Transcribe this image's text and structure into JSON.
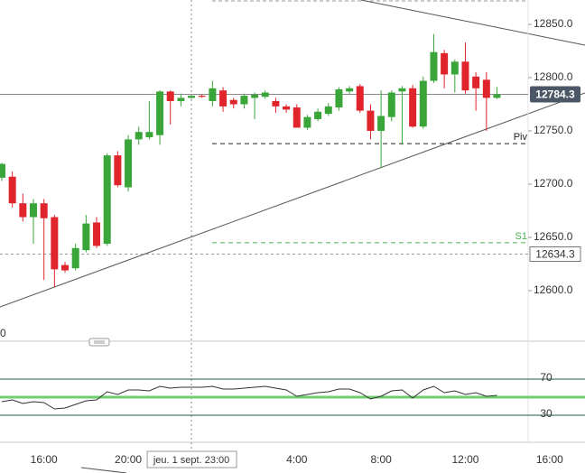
{
  "chart_data": [
    {
      "type": "candlestick",
      "categories": [
        "",
        "",
        "",
        "",
        "16:00",
        "",
        "",
        "",
        "",
        "",
        "",
        "",
        "20:00",
        "",
        "",
        "",
        "",
        "",
        "jeu. 1 sept. 23:00",
        "",
        "",
        "",
        "",
        "",
        "",
        "",
        "",
        "",
        "4:00",
        "",
        "",
        "",
        "",
        "",
        "",
        "",
        "8:00",
        "",
        "",
        "",
        "",
        "",
        "",
        "",
        "12:00",
        "",
        "",
        "",
        "",
        "",
        "",
        "",
        "16:00"
      ],
      "open": [
        12706,
        12707,
        12682,
        12669,
        12682,
        12669,
        12624,
        12621,
        12638,
        12664,
        12644,
        12727,
        12697,
        12742,
        12744,
        12746,
        12787,
        12778,
        12781,
        12783,
        12778,
        12788,
        12779,
        12775,
        12781,
        12782,
        12778,
        12773,
        12772,
        12753,
        12761,
        12766,
        12772,
        12787,
        12792,
        12769,
        12750,
        12763,
        12787,
        12790,
        12754,
        12797,
        12823,
        12803,
        12815,
        12801,
        12798,
        12781,
        null,
        null,
        null,
        null,
        null
      ],
      "high": [
        12720,
        12712,
        12691,
        12686,
        12686,
        12671,
        12627,
        12644,
        12671,
        12669,
        12729,
        12731,
        12746,
        12754,
        12778,
        12788,
        12788,
        12785,
        12784,
        12784,
        12797,
        12791,
        12781,
        12785,
        12786,
        12788,
        12781,
        12775,
        12775,
        12765,
        12771,
        12776,
        12791,
        12792,
        12794,
        12775,
        12788,
        12788,
        12792,
        12793,
        12801,
        12841,
        12826,
        12817,
        12833,
        12805,
        12805,
        12791,
        null,
        null,
        null,
        null,
        null
      ],
      "low": [
        12703,
        12678,
        12665,
        12644,
        12610,
        12603,
        12617,
        12619,
        12636,
        12640,
        12642,
        12697,
        12693,
        12737,
        12742,
        12737,
        12756,
        12773,
        12780,
        12781,
        12773,
        12768,
        12771,
        12771,
        12761,
        12780,
        12767,
        12767,
        12753,
        12751,
        12759,
        12764,
        12769,
        12785,
        12767,
        12742,
        12715,
        12759,
        12737,
        12753,
        12752,
        12795,
        12790,
        12786,
        12785,
        12769,
        12750,
        12780,
        null,
        null,
        null,
        null,
        null
      ],
      "close": [
        12719,
        12682,
        12669,
        12682,
        12668,
        12620,
        12619,
        12640,
        12663,
        12642,
        12727,
        12699,
        12742,
        12749,
        12749,
        12787,
        12778,
        12781,
        12783,
        12782,
        12790,
        12773,
        12775,
        12783,
        12784,
        12786,
        12773,
        12770,
        12753,
        12763,
        12768,
        12773,
        12789,
        12790,
        12769,
        12750,
        12764,
        12786,
        12790,
        12754,
        12797,
        12824,
        12803,
        12815,
        12788,
        12790,
        12781,
        12784.3,
        null,
        null,
        null,
        null,
        null
      ],
      "up_color": "#3aa63a",
      "down_color": "#e0242c",
      "ylim": [
        12552.5,
        12872.9
      ],
      "yticks": [
        {
          "value": 12600,
          "label": "12600.0"
        },
        {
          "value": 12650,
          "label": "12650.0"
        },
        {
          "value": 12700,
          "label": "12700.0"
        },
        {
          "value": 12750,
          "label": "12750.0"
        },
        {
          "value": 12800,
          "label": "12800.0"
        },
        {
          "value": 12850,
          "label": "12850.0"
        }
      ],
      "last_price": 12784.3,
      "marker_price": 12634.3,
      "levels": [
        {
          "name": "Piv",
          "value": 12738,
          "color": "#222"
        },
        {
          "name": "S1",
          "value": 12645,
          "color": "#4caf50"
        }
      ],
      "corner_label": "0"
    },
    {
      "type": "line",
      "values": [
        45,
        47,
        43,
        45,
        44,
        37,
        38,
        42,
        46,
        47,
        56,
        53,
        58,
        58,
        57,
        62,
        60,
        61,
        61,
        61,
        62,
        59,
        59,
        60,
        61,
        62,
        60,
        58,
        51,
        53,
        55,
        56,
        59,
        59,
        55,
        48,
        51,
        57,
        58,
        49,
        58,
        62,
        55,
        57,
        53,
        55,
        51,
        52
      ],
      "color": "#333",
      "ylim": [
        0,
        100
      ],
      "yticks": [
        30,
        70
      ],
      "midline": 50,
      "midline_color": "#6fcf6f",
      "band_color": "#1f5a4c"
    }
  ]
}
